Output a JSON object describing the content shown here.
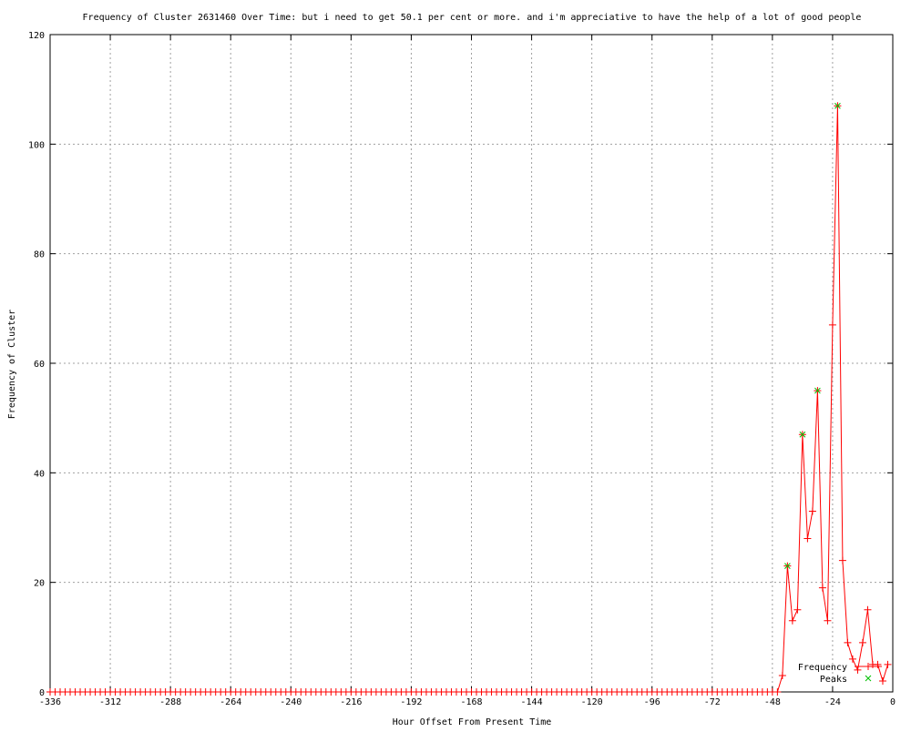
{
  "chart_data": {
    "type": "line",
    "title": "Frequency of Cluster 2631460 Over Time: but i need to get 50.1 per cent or more. and i'm appreciative to have the help of a lot of good people",
    "xlabel": "Hour Offset From Present Time",
    "ylabel": "Frequency of Cluster",
    "xlim": [
      -336,
      0
    ],
    "ylim": [
      0,
      120
    ],
    "xticks": [
      -336,
      -312,
      -288,
      -264,
      -240,
      -216,
      -192,
      -168,
      -144,
      -120,
      -96,
      -72,
      -48,
      -24,
      0
    ],
    "yticks": [
      0,
      20,
      40,
      60,
      80,
      100,
      120
    ],
    "grid": true,
    "legend_position": "bottom-right",
    "series": [
      {
        "name": "Frequency",
        "color": "#ff0000",
        "marker": "plus",
        "x": [
          -336,
          -334,
          -332,
          -330,
          -328,
          -326,
          -324,
          -322,
          -320,
          -318,
          -316,
          -314,
          -312,
          -310,
          -308,
          -306,
          -304,
          -302,
          -300,
          -298,
          -296,
          -294,
          -292,
          -290,
          -288,
          -286,
          -284,
          -282,
          -280,
          -278,
          -276,
          -274,
          -272,
          -270,
          -268,
          -266,
          -264,
          -262,
          -260,
          -258,
          -256,
          -254,
          -252,
          -250,
          -248,
          -246,
          -244,
          -242,
          -240,
          -238,
          -236,
          -234,
          -232,
          -230,
          -228,
          -226,
          -224,
          -222,
          -220,
          -218,
          -216,
          -214,
          -212,
          -210,
          -208,
          -206,
          -204,
          -202,
          -200,
          -198,
          -196,
          -194,
          -192,
          -190,
          -188,
          -186,
          -184,
          -182,
          -180,
          -178,
          -176,
          -174,
          -172,
          -170,
          -168,
          -166,
          -164,
          -162,
          -160,
          -158,
          -156,
          -154,
          -152,
          -150,
          -148,
          -146,
          -144,
          -142,
          -140,
          -138,
          -136,
          -134,
          -132,
          -130,
          -128,
          -126,
          -124,
          -122,
          -120,
          -118,
          -116,
          -114,
          -112,
          -110,
          -108,
          -106,
          -104,
          -102,
          -100,
          -98,
          -96,
          -94,
          -92,
          -90,
          -88,
          -86,
          -84,
          -82,
          -80,
          -78,
          -76,
          -74,
          -72,
          -70,
          -68,
          -66,
          -64,
          -62,
          -60,
          -58,
          -56,
          -54,
          -52,
          -50,
          -48,
          -46,
          -44,
          -42,
          -40,
          -38,
          -36,
          -34,
          -32,
          -30,
          -28,
          -26,
          -24,
          -22,
          -20,
          -18,
          -16,
          -14,
          -12,
          -10,
          -8,
          -6,
          -4,
          -2
        ],
        "y": [
          0,
          0,
          0,
          0,
          0,
          0,
          0,
          0,
          0,
          0,
          0,
          0,
          0,
          0,
          0,
          0,
          0,
          0,
          0,
          0,
          0,
          0,
          0,
          0,
          0,
          0,
          0,
          0,
          0,
          0,
          0,
          0,
          0,
          0,
          0,
          0,
          0,
          0,
          0,
          0,
          0,
          0,
          0,
          0,
          0,
          0,
          0,
          0,
          0,
          0,
          0,
          0,
          0,
          0,
          0,
          0,
          0,
          0,
          0,
          0,
          0,
          0,
          0,
          0,
          0,
          0,
          0,
          0,
          0,
          0,
          0,
          0,
          0,
          0,
          0,
          0,
          0,
          0,
          0,
          0,
          0,
          0,
          0,
          0,
          0,
          0,
          0,
          0,
          0,
          0,
          0,
          0,
          0,
          0,
          0,
          0,
          0,
          0,
          0,
          0,
          0,
          0,
          0,
          0,
          0,
          0,
          0,
          0,
          0,
          0,
          0,
          0,
          0,
          0,
          0,
          0,
          0,
          0,
          0,
          0,
          0,
          0,
          0,
          0,
          0,
          0,
          0,
          0,
          0,
          0,
          0,
          0,
          0,
          0,
          0,
          0,
          0,
          0,
          0,
          0,
          0,
          0,
          0,
          0,
          0,
          0,
          3,
          23,
          13,
          15,
          47,
          28,
          33,
          55,
          19,
          13,
          67,
          107,
          24,
          9,
          6,
          4,
          9,
          15,
          5,
          5,
          2,
          5
        ]
      },
      {
        "name": "Peaks",
        "color": "#00c000",
        "marker": "x",
        "x": [
          -42,
          -36,
          -30,
          -22
        ],
        "y": [
          23,
          47,
          55,
          107
        ]
      }
    ]
  }
}
